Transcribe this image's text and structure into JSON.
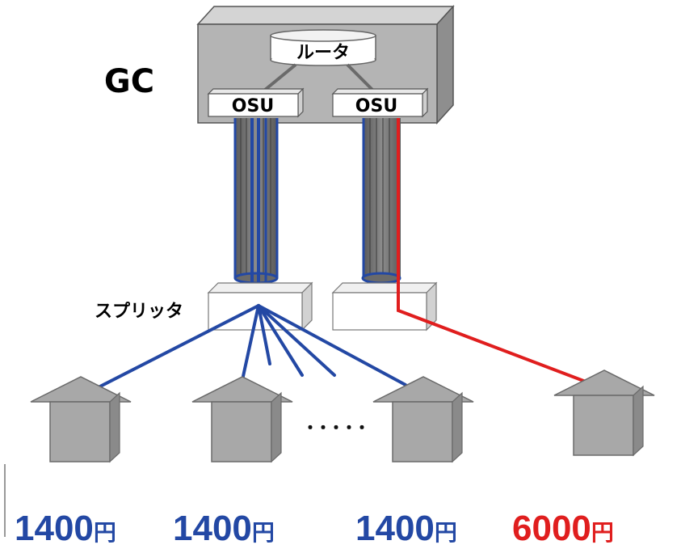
{
  "labels": {
    "gc": "GC",
    "router": "ルータ",
    "osu_left": "OSU",
    "osu_right": "OSU",
    "splitter": "スプリッタ",
    "ellipsis": "・・・・・"
  },
  "prices": [
    {
      "amount": "1400",
      "unit": "円",
      "color": "#2348a4"
    },
    {
      "amount": "1400",
      "unit": "円",
      "color": "#2348a4"
    },
    {
      "amount": "1400",
      "unit": "円",
      "color": "#2348a4"
    },
    {
      "amount": "6000",
      "unit": "円",
      "color": "#e01e1e"
    }
  ],
  "colors": {
    "shared_line": "#2348a4",
    "dedicated_line": "#e01e1e",
    "box_gray": "#b4b4b4",
    "house_gray": "#a8a8a8"
  }
}
